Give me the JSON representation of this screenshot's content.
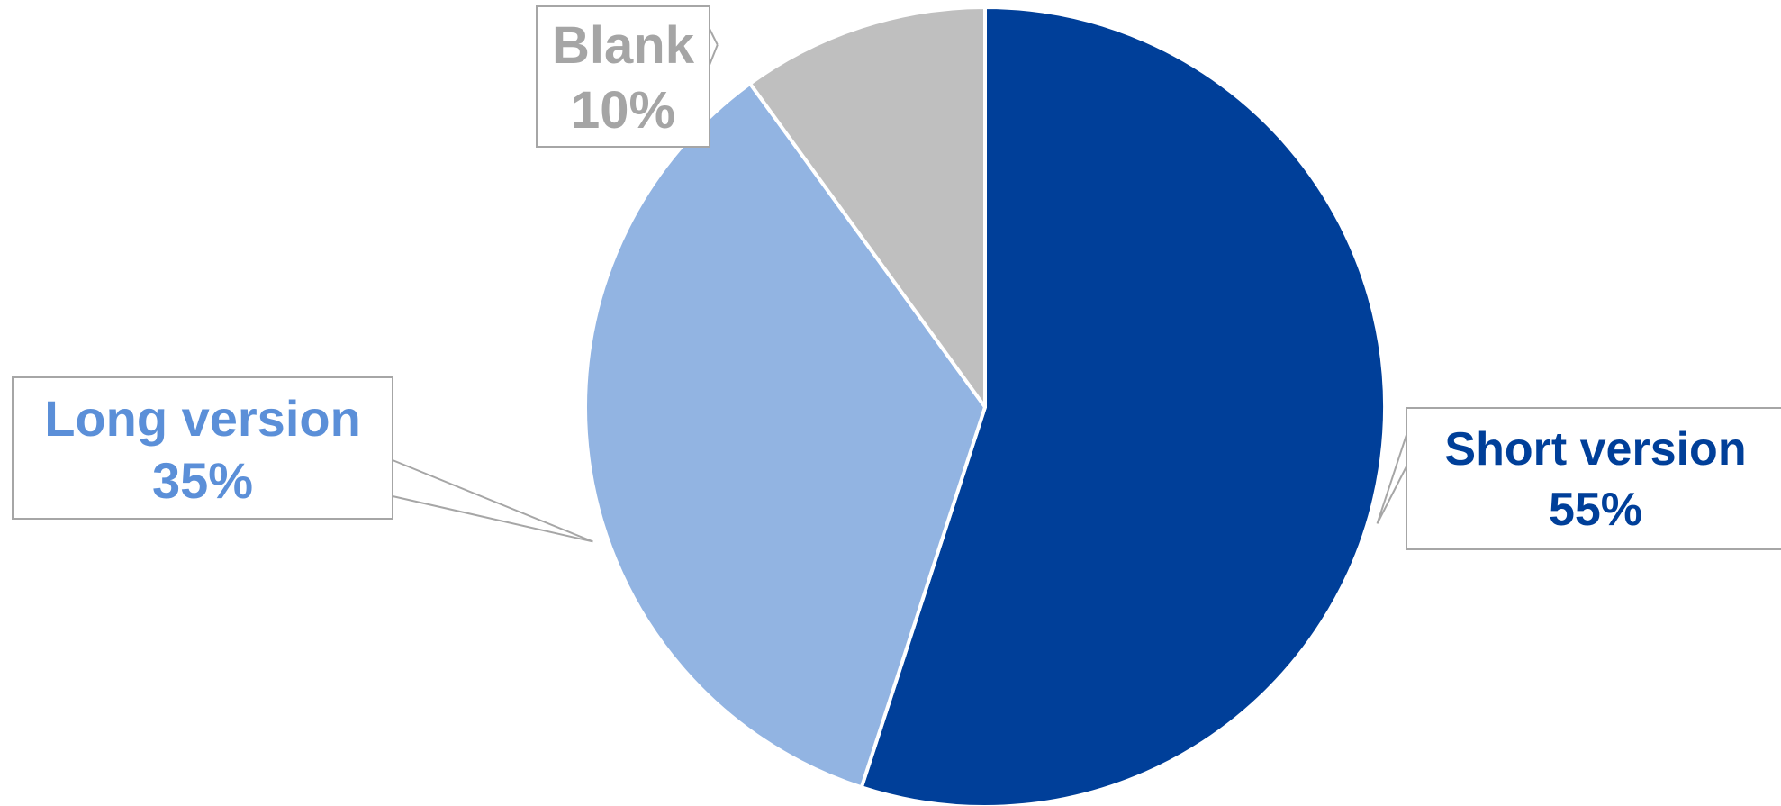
{
  "chart_data": {
    "type": "pie",
    "title": "",
    "slices": [
      {
        "name": "Short version",
        "value": 55,
        "label": "55%",
        "color": "#003F99"
      },
      {
        "name": "Long version",
        "value": 35,
        "label": "35%",
        "color": "#92B4E2"
      },
      {
        "name": "Blank",
        "value": 10,
        "label": "10%",
        "color": "#BFBFBF"
      }
    ],
    "label_colors": {
      "Short version": "#003F99",
      "Long version": "#5B8FD8",
      "Blank": "#A5A5A5"
    },
    "legend": "none",
    "start": "12 o'clock",
    "direction": "clockwise"
  }
}
